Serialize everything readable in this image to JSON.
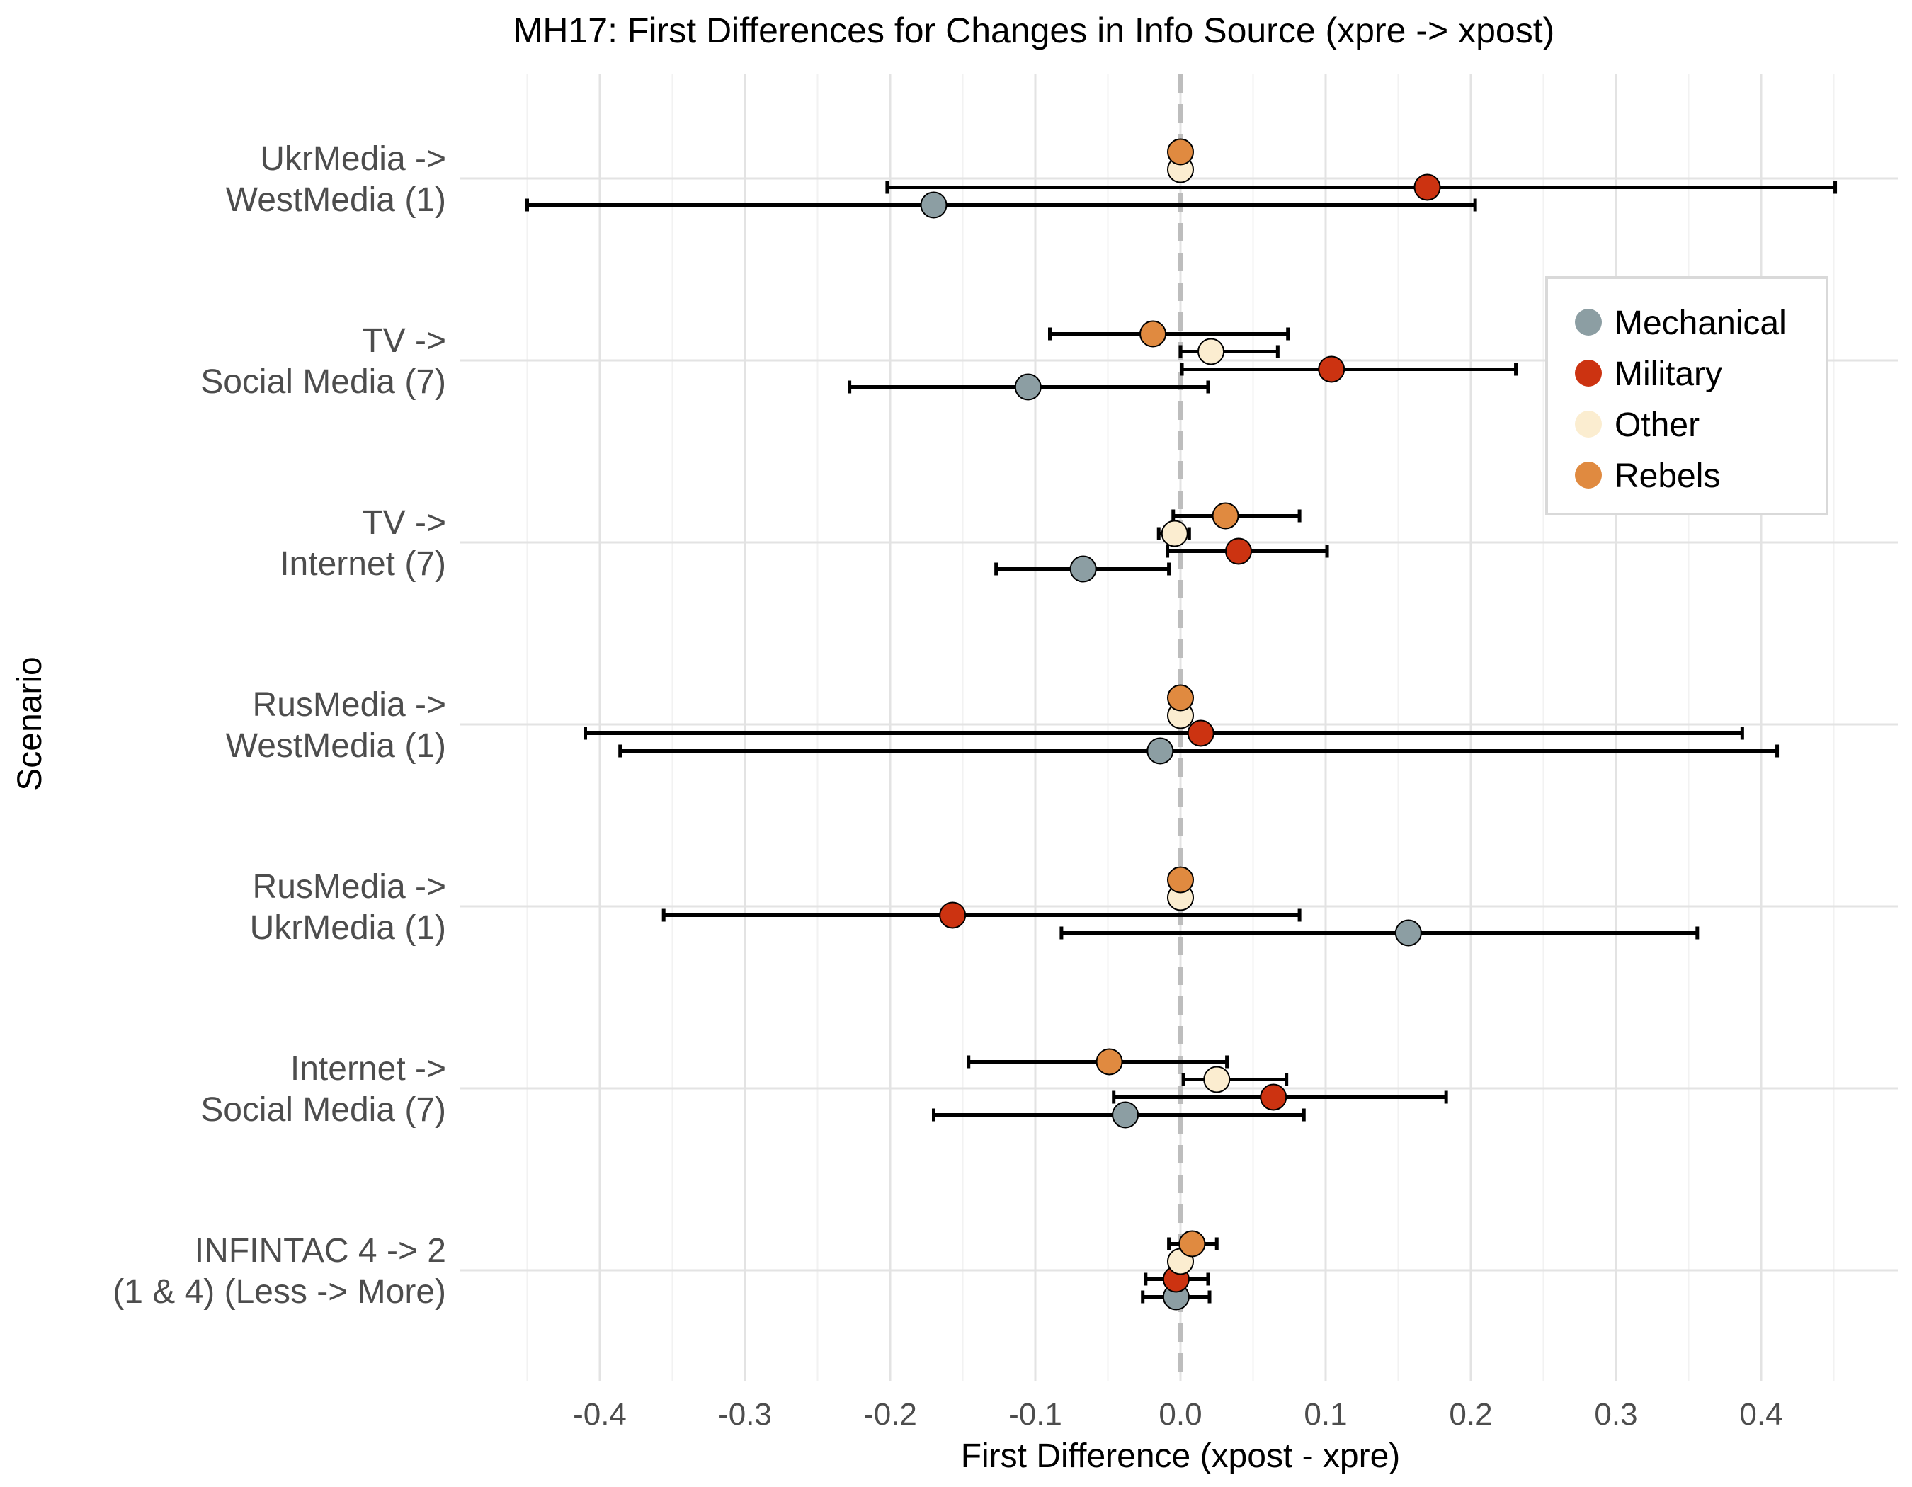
{
  "chart_data": {
    "type": "scatter",
    "title": "MH17: First Differences for Changes in Info Source (xpre -> xpost)",
    "xlabel": "First Difference (xpost - xpre)",
    "ylabel": "Scenario",
    "xlim": [
      -0.45,
      0.5
    ],
    "xticks": [
      -0.4,
      -0.3,
      -0.2,
      -0.1,
      0.0,
      0.1,
      0.2,
      0.3,
      0.4
    ],
    "xtick_labels": [
      "-0.4",
      "-0.3",
      "-0.2",
      "-0.1",
      "0.0",
      "0.1",
      "0.2",
      "0.3",
      "0.4"
    ],
    "grid": true,
    "reference_line": 0.0,
    "legend_position": "top-right",
    "scenarios": [
      {
        "line1": "UkrMedia ->",
        "line2": "WestMedia (1)"
      },
      {
        "line1": "TV ->",
        "line2": "Social Media (7)"
      },
      {
        "line1": "TV ->",
        "line2": "Internet (7)"
      },
      {
        "line1": "RusMedia ->",
        "line2": "WestMedia (1)"
      },
      {
        "line1": "RusMedia ->",
        "line2": "UkrMedia (1)"
      },
      {
        "line1": "Internet ->",
        "line2": "Social Media (7)"
      },
      {
        "line1": "INFINTAC 4 -> 2",
        "line2": "(1 & 4) (Less -> More)"
      }
    ],
    "series": [
      {
        "name": "Mechanical",
        "color": "#8c9ea3",
        "points": [
          {
            "scenario": 0,
            "est": -0.17,
            "lo": -0.45,
            "hi": 0.203
          },
          {
            "scenario": 1,
            "est": -0.105,
            "lo": -0.228,
            "hi": 0.019
          },
          {
            "scenario": 2,
            "est": -0.067,
            "lo": -0.127,
            "hi": -0.008
          },
          {
            "scenario": 3,
            "est": -0.014,
            "lo": -0.386,
            "hi": 0.411
          },
          {
            "scenario": 4,
            "est": 0.157,
            "lo": -0.082,
            "hi": 0.356
          },
          {
            "scenario": 5,
            "est": -0.038,
            "lo": -0.17,
            "hi": 0.085
          },
          {
            "scenario": 6,
            "est": -0.003,
            "lo": -0.026,
            "hi": 0.02
          }
        ]
      },
      {
        "name": "Military",
        "color": "#cc3311",
        "points": [
          {
            "scenario": 0,
            "est": 0.17,
            "lo": -0.202,
            "hi": 0.451
          },
          {
            "scenario": 1,
            "est": 0.104,
            "lo": 0.001,
            "hi": 0.231
          },
          {
            "scenario": 2,
            "est": 0.04,
            "lo": -0.009,
            "hi": 0.101
          },
          {
            "scenario": 3,
            "est": 0.014,
            "lo": -0.41,
            "hi": 0.387
          },
          {
            "scenario": 4,
            "est": -0.157,
            "lo": -0.356,
            "hi": 0.082
          },
          {
            "scenario": 5,
            "est": 0.064,
            "lo": -0.046,
            "hi": 0.183
          },
          {
            "scenario": 6,
            "est": -0.003,
            "lo": -0.024,
            "hi": 0.019
          }
        ]
      },
      {
        "name": "Other",
        "color": "#fbedd0",
        "points": [
          {
            "scenario": 0,
            "est": 0.0
          },
          {
            "scenario": 1,
            "est": 0.021,
            "lo": 0.0,
            "hi": 0.067
          },
          {
            "scenario": 2,
            "est": -0.004,
            "lo": -0.015,
            "hi": 0.006
          },
          {
            "scenario": 3,
            "est": 0.0
          },
          {
            "scenario": 4,
            "est": 0.0
          },
          {
            "scenario": 5,
            "est": 0.025,
            "lo": 0.002,
            "hi": 0.073
          },
          {
            "scenario": 6,
            "est": 0.0
          }
        ]
      },
      {
        "name": "Rebels",
        "color": "#e08a40",
        "points": [
          {
            "scenario": 0,
            "est": 0.0
          },
          {
            "scenario": 1,
            "est": -0.019,
            "lo": -0.09,
            "hi": 0.074
          },
          {
            "scenario": 2,
            "est": 0.031,
            "lo": -0.005,
            "hi": 0.082
          },
          {
            "scenario": 3,
            "est": 0.0
          },
          {
            "scenario": 4,
            "est": 0.0
          },
          {
            "scenario": 5,
            "est": -0.049,
            "lo": -0.146,
            "hi": 0.032
          },
          {
            "scenario": 6,
            "est": 0.008,
            "lo": -0.008,
            "hi": 0.025
          }
        ]
      }
    ]
  }
}
